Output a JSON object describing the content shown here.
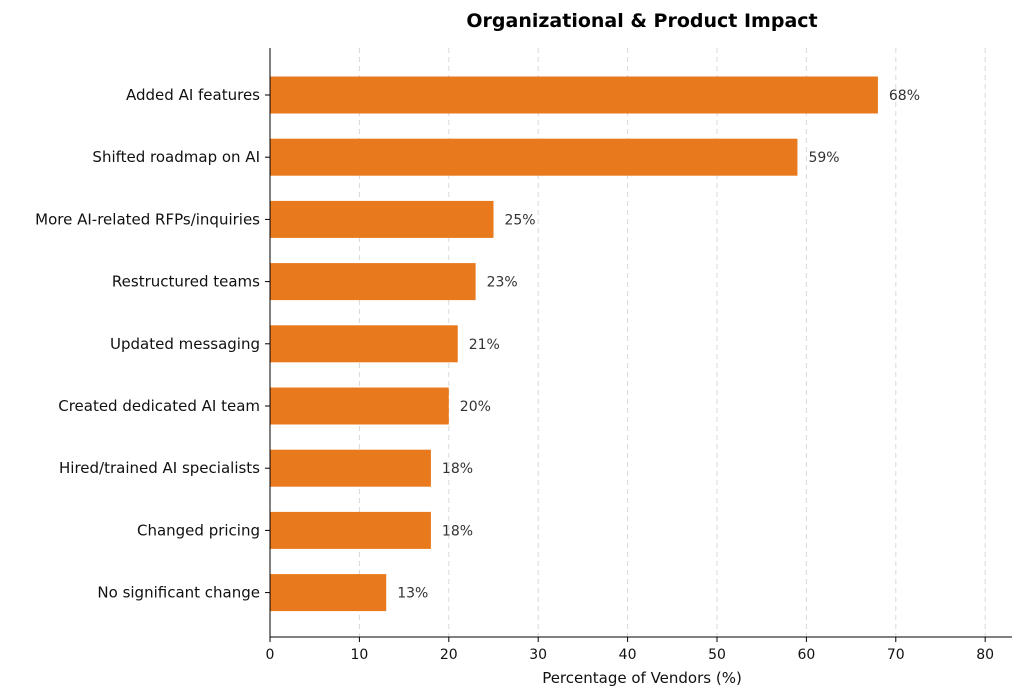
{
  "chart_data": {
    "type": "bar",
    "orientation": "horizontal",
    "title": "Organizational & Product Impact",
    "xlabel": "Percentage of Vendors (%)",
    "ylabel": "",
    "xlim": [
      0,
      83
    ],
    "xticks": [
      0,
      10,
      20,
      30,
      40,
      50,
      60,
      70,
      80
    ],
    "grid": "x-dashed",
    "bar_color": "#e8791c",
    "value_suffix": "%",
    "categories": [
      "Added AI features",
      "Shifted roadmap on AI",
      "More AI-related RFPs/inquiries",
      "Restructured teams",
      "Updated messaging",
      "Created dedicated AI team",
      "Hired/trained AI specialists",
      "Changed pricing",
      "No significant change"
    ],
    "values": [
      68,
      59,
      25,
      23,
      21,
      20,
      18,
      18,
      13
    ]
  }
}
